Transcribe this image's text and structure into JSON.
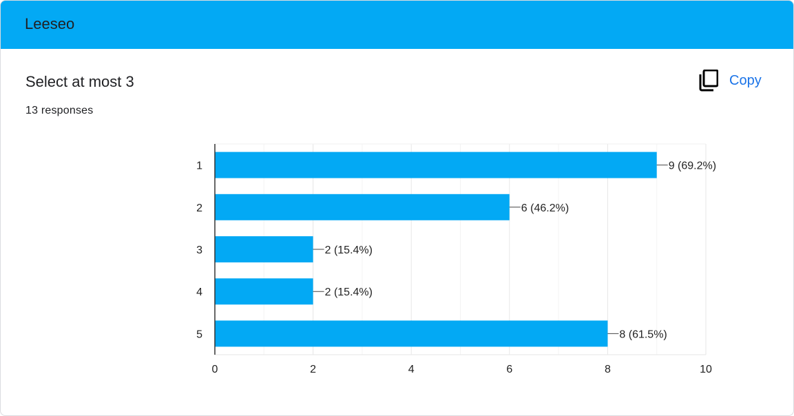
{
  "form": {
    "title": "Leeseo"
  },
  "question": {
    "title": "Select at most 3",
    "responses": "13 responses",
    "copy_label": "Copy"
  },
  "colors": {
    "header": "#03a9f4",
    "bar": "#03a9f4",
    "link": "#1a73e8"
  },
  "icons": {
    "copy": "copy-icon"
  },
  "chart_data": {
    "type": "bar",
    "orientation": "horizontal",
    "categories": [
      "1",
      "2",
      "3",
      "4",
      "5"
    ],
    "values": [
      9,
      6,
      2,
      2,
      8
    ],
    "data_labels": [
      "9 (69.2%)",
      "6 (46.2%)",
      "2 (15.4%)",
      "2 (15.4%)",
      "8 (61.5%)"
    ],
    "x_ticks": [
      "0",
      "2",
      "4",
      "6",
      "8",
      "10"
    ],
    "xlim": [
      0,
      10
    ],
    "grid": true
  }
}
